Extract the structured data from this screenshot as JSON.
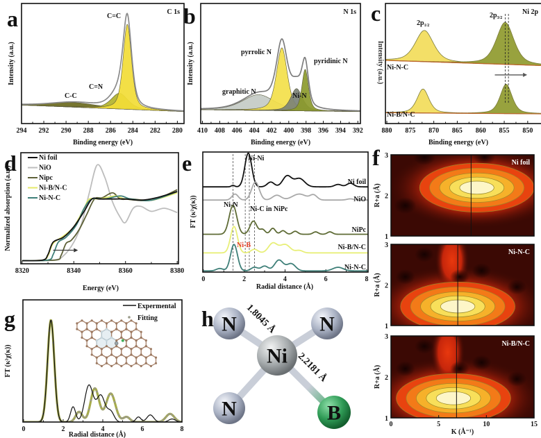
{
  "chart_data": [
    {
      "panel": "a",
      "type": "area",
      "title": "C 1s",
      "xlabel": "Binding energy (eV)",
      "ylabel": "Intensity (a.u.)",
      "xlim": [
        294,
        279.4
      ],
      "ylim": [
        -0.2,
        1.1
      ],
      "xticks": [
        294,
        292,
        290,
        288,
        286,
        284,
        282,
        280
      ],
      "baseline": [
        [
          294,
          0.0
        ],
        [
          279.4,
          -0.07
        ]
      ],
      "envelope_color": "#8a8a8a",
      "series": [
        {
          "name": "C-C",
          "center": 289.3,
          "height": 0.05,
          "hwhm": 2.5,
          "color": "#6b6a1e"
        },
        {
          "name": "C=N",
          "center": 285.2,
          "height": 0.17,
          "hwhm": 0.9,
          "color": "#b3b32c"
        },
        {
          "name": "C=C",
          "center": 284.5,
          "height": 0.92,
          "hwhm": 0.45,
          "color": "#f2dc36"
        }
      ]
    },
    {
      "panel": "b",
      "type": "area",
      "title": "N 1s",
      "xlabel": "Binding energy (eV)",
      "ylabel": "Intensity (a.u.)",
      "xlim": [
        410.2,
        391.7
      ],
      "ylim": [
        -0.2,
        1.1
      ],
      "xticks": [
        410,
        408,
        406,
        404,
        402,
        400,
        398,
        396,
        394,
        392
      ],
      "baseline": [
        [
          410.2,
          -0.05
        ],
        [
          391.7,
          -0.07
        ]
      ],
      "envelope_color": "#7d7d7d",
      "series": [
        {
          "name": "graphitic N",
          "center": 403.5,
          "height": 0.17,
          "hwhm": 2.2,
          "color": "#c4cbc6"
        },
        {
          "name": "pyrrolic N",
          "center": 400.8,
          "height": 0.68,
          "hwhm": 0.75,
          "color": "#f3df4a"
        },
        {
          "name": "Ni-N",
          "center": 399.1,
          "height": 0.24,
          "hwhm": 0.8,
          "color": "#7b8277"
        },
        {
          "name": "pyridinic N",
          "center": 398.1,
          "height": 0.45,
          "hwhm": 0.45,
          "color": "#8c9a2c"
        }
      ]
    },
    {
      "panel": "c",
      "type": "area",
      "title": "Ni 2p",
      "xlabel": "Binding energy (eV)",
      "ylabel": "Intensity (a.u.)",
      "xlim": [
        880.3,
        844.8
      ],
      "ylim": [
        0,
        1
      ],
      "xticks": [
        880,
        875,
        870,
        865,
        860,
        855,
        850
      ],
      "spectra": [
        {
          "name": "Ni-N-C",
          "baseline": [
            [
              880.3,
              0.526
            ],
            [
              844.8,
              0.48
            ]
          ],
          "components": [
            {
              "label": "2p",
              "sub": "1/2",
              "center": 872.0,
              "height": 0.26,
              "hwhm": 2.3,
              "color": "#f2dc5a"
            },
            {
              "label": "2p",
              "sub": "3/2",
              "center": 854.8,
              "height": 0.35,
              "hwhm": 2.2,
              "color": "#8f9a2e"
            }
          ]
        },
        {
          "name": "Ni-B/N-C",
          "baseline": [
            [
              880.3,
              0.09
            ],
            [
              844.8,
              0.08
            ]
          ],
          "components": [
            {
              "center": 872.3,
              "height": 0.2,
              "hwhm": 1.5,
              "color": "#f2dc5a"
            },
            {
              "center": 854.6,
              "height": 0.245,
              "hwhm": 1.5,
              "color": "#8f9a2e"
            }
          ]
        }
      ],
      "reference_lines": [
        854.8,
        854.1
      ],
      "shift_arrow": {
        "from": 857,
        "to": 851
      }
    },
    {
      "panel": "d",
      "type": "line",
      "xlabel": "Energy (eV)",
      "ylabel": "Normalized absorption (a.u.)",
      "xlim": [
        8319.5,
        8380.5
      ],
      "ylim": [
        -0.05,
        1.75
      ],
      "xticks": [
        8320,
        8340,
        8360,
        8380
      ],
      "legend": "top-left",
      "shift_arrow": {
        "from": 8332,
        "to": 8340,
        "y": 0.17
      },
      "series": [
        {
          "name": "Ni foil",
          "color": "#111111",
          "points": [
            [
              8320,
              0
            ],
            [
              8328,
              0.01
            ],
            [
              8330,
              0.1
            ],
            [
              8332,
              0.3
            ],
            [
              8336,
              0.38
            ],
            [
              8340,
              0.55
            ],
            [
              8344,
              0.8
            ],
            [
              8347,
              1.0
            ],
            [
              8350,
              1.0
            ],
            [
              8356,
              1.0
            ],
            [
              8360,
              1.0
            ],
            [
              8366,
              0.98
            ],
            [
              8372,
              1.02
            ],
            [
              8380,
              1.12
            ]
          ]
        },
        {
          "name": "NiO",
          "color": "#bdbdbd",
          "points": [
            [
              8320,
              0
            ],
            [
              8332,
              0.01
            ],
            [
              8336,
              0.08
            ],
            [
              8340,
              0.3
            ],
            [
              8343,
              0.6
            ],
            [
              8346,
              1.1
            ],
            [
              8349,
              1.55
            ],
            [
              8352,
              1.35
            ],
            [
              8355,
              0.95
            ],
            [
              8358,
              0.7
            ],
            [
              8360,
              0.62
            ],
            [
              8363,
              0.85
            ],
            [
              8366,
              0.88
            ],
            [
              8370,
              0.8
            ],
            [
              8375,
              0.85
            ],
            [
              8380,
              0.78
            ]
          ]
        },
        {
          "name": "Nipc",
          "color": "#5e6138",
          "points": [
            [
              8320,
              0
            ],
            [
              8333,
              0.01
            ],
            [
              8335,
              0.08
            ],
            [
              8337,
              0.28
            ],
            [
              8339,
              0.33
            ],
            [
              8342,
              0.5
            ],
            [
              8345,
              0.75
            ],
            [
              8348,
              1.0
            ],
            [
              8351,
              1.02
            ],
            [
              8355,
              1.1
            ],
            [
              8358,
              1.0
            ],
            [
              8362,
              1.0
            ],
            [
              8370,
              0.98
            ],
            [
              8375,
              1.05
            ],
            [
              8380,
              1.15
            ]
          ]
        },
        {
          "name": "Ni-B/N-C",
          "color": "#e4ea6a",
          "points": [
            [
              8320,
              0
            ],
            [
              8328,
              0.01
            ],
            [
              8330,
              0.08
            ],
            [
              8332,
              0.28
            ],
            [
              8336,
              0.4
            ],
            [
              8340,
              0.55
            ],
            [
              8344,
              0.85
            ],
            [
              8346,
              1.0
            ],
            [
              8350,
              1.0
            ],
            [
              8356,
              1.05
            ],
            [
              8360,
              1.0
            ],
            [
              8370,
              0.98
            ],
            [
              8380,
              1.1
            ]
          ]
        },
        {
          "name": "Ni-N-C",
          "color": "#3e7f78",
          "points": [
            [
              8320,
              0
            ],
            [
              8330,
              0.01
            ],
            [
              8332,
              0.1
            ],
            [
              8334,
              0.3
            ],
            [
              8337,
              0.38
            ],
            [
              8341,
              0.58
            ],
            [
              8344,
              0.85
            ],
            [
              8347,
              1.0
            ],
            [
              8352,
              1.0
            ],
            [
              8358,
              1.05
            ],
            [
              8362,
              1.0
            ],
            [
              8370,
              0.98
            ],
            [
              8380,
              1.12
            ]
          ]
        }
      ]
    },
    {
      "panel": "e",
      "type": "line",
      "xlabel": "Radial distance (Å)",
      "ylabel": "FT (κ²χ(κ))",
      "xlim": [
        -0.03,
        8.07
      ],
      "ylim": [
        0,
        10
      ],
      "xticks": [
        0,
        2,
        4,
        6,
        8
      ],
      "reference_lines": [
        1.45,
        2.05,
        2.25,
        2.5
      ],
      "annotations": [
        {
          "text": "Ni-Ni",
          "color": "#111111"
        },
        {
          "text": "Ni-N",
          "color": "#111111"
        },
        {
          "text": "Ni-C in NiPc",
          "color": "#111111"
        },
        {
          "text": "Ni-B",
          "color": "#e2412a"
        }
      ],
      "series": [
        {
          "name": "Ni foil",
          "color": "#111111",
          "offset": 7.1,
          "peaks": [
            [
              1.45,
              0.12,
              0.1
            ],
            [
              2.2,
              2.8,
              0.2
            ],
            [
              3.3,
              0.4,
              0.2
            ],
            [
              4.1,
              0.9,
              0.25
            ],
            [
              4.7,
              0.7,
              0.3
            ],
            [
              6.6,
              0.2,
              0.2
            ],
            [
              7.2,
              0.3,
              0.2
            ]
          ]
        },
        {
          "name": "NiO",
          "color": "#a9a9a9",
          "offset": 6.0,
          "peaks": [
            [
              1.55,
              0.5,
              0.18
            ],
            [
              2.55,
              1.5,
              0.22
            ],
            [
              3.6,
              0.4,
              0.25
            ],
            [
              4.7,
              0.5,
              0.4
            ],
            [
              5.4,
              0.4,
              0.2
            ],
            [
              7.2,
              0.1,
              0.2
            ]
          ]
        },
        {
          "name": "NiPc",
          "color": "#5e6b35",
          "offset": 3.15,
          "peaks": [
            [
              1.45,
              2.4,
              0.22
            ],
            [
              2.45,
              1.1,
              0.2
            ],
            [
              2.9,
              0.4,
              0.15
            ],
            [
              3.4,
              0.5,
              0.15
            ],
            [
              3.9,
              0.3,
              0.15
            ],
            [
              4.5,
              0.25,
              0.15
            ],
            [
              5.5,
              0.2,
              0.15
            ],
            [
              6.2,
              0.2,
              0.15
            ]
          ]
        },
        {
          "name": "Ni-B/N-C",
          "color": "#e8ef78",
          "offset": 1.6,
          "peaks": [
            [
              1.5,
              2.2,
              0.2
            ],
            [
              2.5,
              0.3,
              0.2
            ],
            [
              3.4,
              0.8,
              0.25
            ],
            [
              4.0,
              0.7,
              0.3
            ],
            [
              4.7,
              0.2,
              0.2
            ]
          ]
        },
        {
          "name": "Ni-N-C",
          "color": "#3e7f78",
          "offset": 0.1,
          "peaks": [
            [
              0.8,
              0.2,
              0.2
            ],
            [
              1.5,
              2.2,
              0.2
            ],
            [
              2.5,
              0.3,
              0.2
            ],
            [
              3.0,
              0.4,
              0.2
            ],
            [
              3.7,
              0.9,
              0.25
            ],
            [
              4.3,
              0.6,
              0.25
            ],
            [
              6.6,
              0.3,
              0.3
            ]
          ]
        }
      ]
    },
    {
      "panel": "f",
      "type": "heatmap",
      "xlabel": "K (Å⁻¹)",
      "ylabel": "R+a (Å)",
      "xlim": [
        0,
        15
      ],
      "ylim": [
        1,
        3
      ],
      "xticks": [
        0,
        5,
        10,
        15
      ],
      "yticks": [
        1,
        2,
        3
      ],
      "maps": [
        {
          "name": "Ni foil",
          "peak_k": 9.0,
          "peak_r": 2.19,
          "line_k": 8.4
        },
        {
          "name": "Ni-N-C",
          "peak_k": 7.0,
          "peak_r": 1.47,
          "line_k": 7.0
        },
        {
          "name": "Ni-B/N-C",
          "peak_k": 6.55,
          "peak_r": 1.48,
          "line_k": 6.87
        }
      ]
    },
    {
      "panel": "g",
      "type": "line",
      "xlabel": "Radial distance (Å)",
      "ylabel": "FT (κ²χ(κ))",
      "xlim": [
        -0.035,
        8.0
      ],
      "ylim": [
        0,
        1.2
      ],
      "xticks": [
        0,
        2,
        4,
        6,
        8
      ],
      "legend": "top-right",
      "series": [
        {
          "name": "Fitting",
          "color": "#a6ab4c",
          "marker_color": "#9a9a8a",
          "peaks": [
            [
              1.38,
              1.0,
              0.2
            ],
            [
              2.8,
              0.1,
              0.2
            ],
            [
              3.6,
              0.33,
              0.25
            ],
            [
              4.4,
              0.28,
              0.28
            ],
            [
              5.2,
              0.05,
              0.2
            ],
            [
              7.4,
              0.08,
              0.25
            ]
          ]
        },
        {
          "name": "Expermental",
          "color": "#111111",
          "peaks": [
            [
              1.38,
              1.0,
              0.2
            ],
            [
              2.5,
              0.15,
              0.15
            ],
            [
              3.3,
              0.36,
              0.25
            ],
            [
              3.9,
              0.26,
              0.25
            ],
            [
              4.4,
              0.1,
              0.2
            ],
            [
              5.8,
              0.05,
              0.15
            ],
            [
              6.4,
              0.07,
              0.2
            ],
            [
              7.5,
              0.03,
              0.2
            ]
          ]
        }
      ]
    }
  ],
  "structure": {
    "panel": "h",
    "atoms": {
      "n1": "N",
      "n2": "N",
      "n3": "N",
      "center": "Ni",
      "b": "B"
    },
    "bonds": {
      "ni_n": "1.8045 Å",
      "ni_b": "2.2181 Å"
    },
    "colors": {
      "N": "#a9b1c4",
      "Ni": "#a7acae",
      "B": "#2e9a55"
    }
  }
}
